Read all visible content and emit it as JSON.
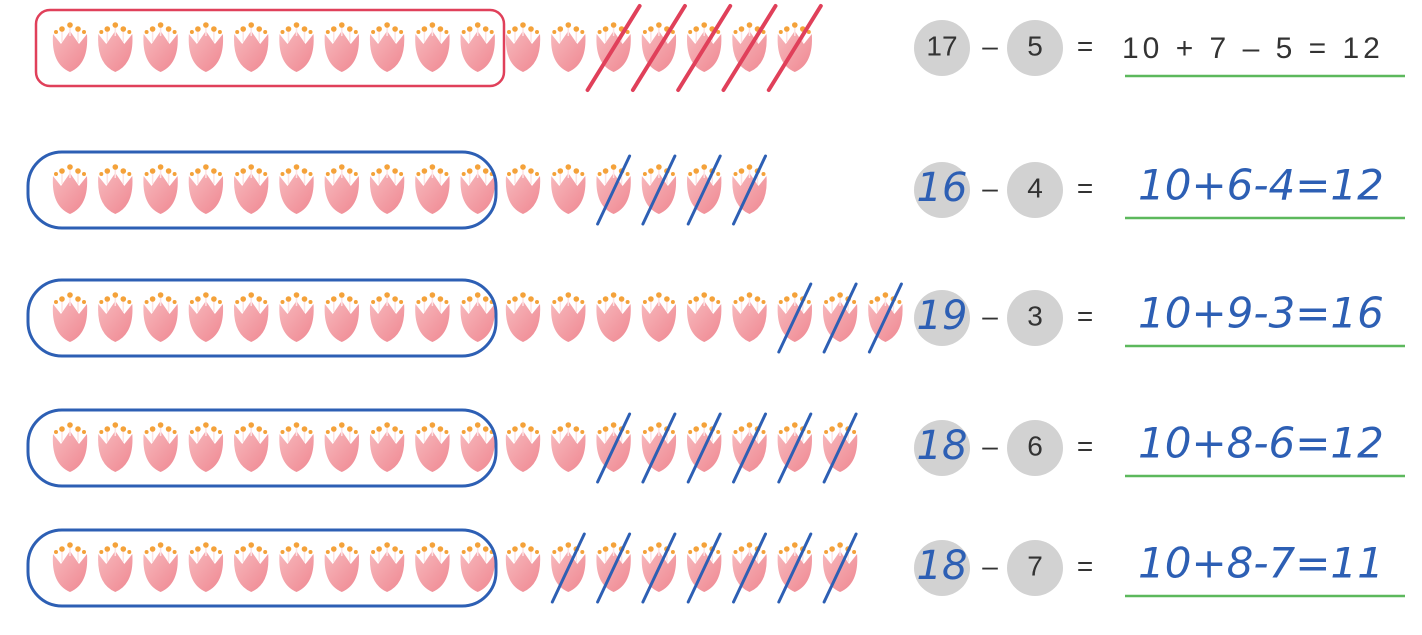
{
  "rows": [
    {
      "minuend": 17,
      "minus": "–",
      "subtrahend": 5,
      "equals": "=",
      "answer": "10 + 7 – 5 = 12"
    },
    {
      "minuend": 16,
      "minus": "–",
      "subtrahend": 4,
      "equals": "=",
      "answer": "10+6-4=12"
    },
    {
      "minuend": 19,
      "minus": "–",
      "subtrahend": 3,
      "equals": "=",
      "answer": "10+9-3=16"
    },
    {
      "minuend": 18,
      "minus": "–",
      "subtrahend": 6,
      "equals": "=",
      "answer": "10+8-6=12"
    },
    {
      "minuend": 18,
      "minus": "–",
      "subtrahend": 7,
      "equals": "=",
      "answer": "10+8-7=11"
    }
  ]
}
